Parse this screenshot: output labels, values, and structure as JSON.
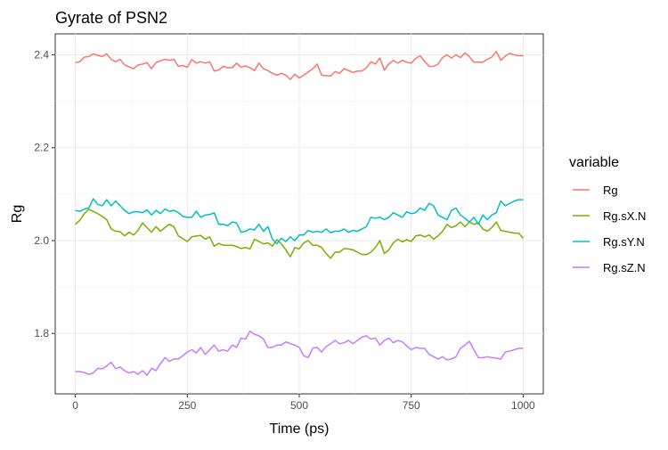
{
  "chart_data": {
    "type": "line",
    "title": "Gyrate of PSN2",
    "xlabel": "Time (ps)",
    "ylabel": "Rg",
    "xlim": [
      -45,
      1045
    ],
    "ylim": [
      1.67,
      2.445
    ],
    "xticks": [
      0,
      250,
      500,
      750,
      1000
    ],
    "xtick_labels": [
      "0",
      "250",
      "500",
      "750",
      "1000"
    ],
    "yticks": [
      1.8,
      2.0,
      2.2,
      2.4
    ],
    "ytick_labels": [
      "1.8",
      "2.0",
      "2.2",
      "2.4"
    ],
    "grid": true,
    "legend": {
      "title": "variable",
      "position": "right"
    },
    "x": [
      0,
      10,
      20,
      30,
      40,
      50,
      60,
      70,
      80,
      90,
      100,
      110,
      120,
      130,
      140,
      150,
      160,
      170,
      180,
      190,
      200,
      210,
      220,
      230,
      240,
      250,
      260,
      270,
      280,
      290,
      300,
      310,
      320,
      330,
      340,
      350,
      360,
      370,
      380,
      390,
      400,
      410,
      420,
      430,
      440,
      450,
      460,
      470,
      480,
      490,
      500,
      510,
      520,
      530,
      540,
      550,
      560,
      570,
      580,
      590,
      600,
      610,
      620,
      630,
      640,
      650,
      660,
      670,
      680,
      690,
      700,
      710,
      720,
      730,
      740,
      750,
      760,
      770,
      780,
      790,
      800,
      810,
      820,
      830,
      840,
      850,
      860,
      870,
      880,
      890,
      900,
      910,
      920,
      930,
      940,
      950,
      960,
      970,
      980,
      990,
      1000
    ],
    "series": [
      {
        "name": "Rg",
        "color": "#f8766d",
        "values": [
          2.383,
          2.385,
          2.395,
          2.396,
          2.402,
          2.399,
          2.396,
          2.402,
          2.39,
          2.385,
          2.39,
          2.378,
          2.374,
          2.37,
          2.378,
          2.38,
          2.383,
          2.37,
          2.383,
          2.387,
          2.39,
          2.388,
          2.39,
          2.375,
          2.377,
          2.373,
          2.39,
          2.382,
          2.385,
          2.382,
          2.385,
          2.365,
          2.367,
          2.375,
          2.372,
          2.372,
          2.382,
          2.373,
          2.376,
          2.372,
          2.366,
          2.382,
          2.37,
          2.366,
          2.36,
          2.356,
          2.36,
          2.356,
          2.347,
          2.358,
          2.35,
          2.356,
          2.363,
          2.37,
          2.38,
          2.356,
          2.355,
          2.354,
          2.364,
          2.36,
          2.37,
          2.366,
          2.362,
          2.365,
          2.365,
          2.372,
          2.385,
          2.38,
          2.393,
          2.367,
          2.38,
          2.388,
          2.382,
          2.388,
          2.384,
          2.382,
          2.392,
          2.398,
          2.386,
          2.375,
          2.375,
          2.38,
          2.394,
          2.4,
          2.393,
          2.4,
          2.394,
          2.404,
          2.396,
          2.384,
          2.384,
          2.384,
          2.39,
          2.395,
          2.407,
          2.388,
          2.397,
          2.403,
          2.4,
          2.398,
          2.398
        ]
      },
      {
        "name": "Rg.sX.N",
        "color": "#7cae00",
        "values": [
          2.035,
          2.044,
          2.058,
          2.067,
          2.063,
          2.058,
          2.052,
          2.045,
          2.025,
          2.02,
          2.019,
          2.01,
          2.018,
          2.012,
          2.022,
          2.038,
          2.028,
          2.018,
          2.03,
          2.02,
          2.028,
          2.035,
          2.03,
          2.01,
          2.004,
          1.998,
          2.008,
          2.01,
          2.011,
          2.003,
          2.008,
          1.988,
          1.994,
          1.99,
          1.99,
          1.99,
          1.987,
          1.983,
          1.985,
          1.982,
          2.003,
          1.998,
          1.993,
          1.995,
          1.988,
          2.002,
          1.993,
          1.98,
          1.965,
          1.985,
          1.982,
          1.995,
          2.0,
          1.99,
          1.99,
          1.985,
          1.972,
          1.962,
          1.975,
          1.975,
          1.983,
          1.982,
          1.98,
          1.975,
          1.97,
          1.97,
          1.975,
          1.985,
          2.0,
          1.972,
          1.98,
          1.995,
          2.003,
          1.997,
          2.002,
          1.998,
          2.01,
          2.012,
          2.008,
          2.012,
          2.003,
          2.01,
          2.02,
          2.035,
          2.028,
          2.032,
          2.04,
          2.03,
          2.04,
          2.035,
          2.038,
          2.025,
          2.02,
          2.028,
          2.04,
          2.022,
          2.02,
          2.018,
          2.016,
          2.016,
          2.005
        ]
      },
      {
        "name": "Rg.sY.N",
        "color": "#00bfc4",
        "values": [
          2.065,
          2.063,
          2.068,
          2.07,
          2.09,
          2.078,
          2.075,
          2.088,
          2.075,
          2.085,
          2.075,
          2.065,
          2.058,
          2.062,
          2.062,
          2.06,
          2.066,
          2.055,
          2.065,
          2.058,
          2.068,
          2.063,
          2.065,
          2.06,
          2.052,
          2.05,
          2.05,
          2.063,
          2.05,
          2.055,
          2.056,
          2.06,
          2.035,
          2.035,
          2.032,
          2.04,
          2.038,
          2.018,
          2.02,
          2.025,
          2.023,
          2.035,
          2.02,
          2.03,
          2.003,
          1.993,
          2.005,
          1.998,
          2.008,
          2.0,
          2.012,
          2.012,
          2.022,
          2.018,
          2.02,
          2.018,
          2.025,
          2.017,
          2.02,
          2.02,
          2.025,
          2.018,
          2.022,
          2.02,
          2.025,
          2.03,
          2.05,
          2.048,
          2.05,
          2.045,
          2.05,
          2.06,
          2.055,
          2.05,
          2.062,
          2.058,
          2.06,
          2.07,
          2.065,
          2.08,
          2.075,
          2.055,
          2.05,
          2.045,
          2.065,
          2.07,
          2.055,
          2.048,
          2.04,
          2.05,
          2.035,
          2.055,
          2.045,
          2.055,
          2.06,
          2.085,
          2.075,
          2.08,
          2.085,
          2.088,
          2.088
        ]
      },
      {
        "name": "Rg.sZ.N",
        "color": "#c77cff",
        "values": [
          1.718,
          1.718,
          1.716,
          1.712,
          1.715,
          1.725,
          1.724,
          1.73,
          1.738,
          1.724,
          1.728,
          1.72,
          1.715,
          1.718,
          1.712,
          1.72,
          1.71,
          1.725,
          1.72,
          1.735,
          1.748,
          1.74,
          1.745,
          1.745,
          1.752,
          1.76,
          1.765,
          1.758,
          1.77,
          1.755,
          1.765,
          1.775,
          1.762,
          1.765,
          1.762,
          1.775,
          1.77,
          1.79,
          1.788,
          1.805,
          1.798,
          1.795,
          1.788,
          1.77,
          1.77,
          1.775,
          1.775,
          1.782,
          1.778,
          1.775,
          1.77,
          1.752,
          1.748,
          1.768,
          1.77,
          1.76,
          1.772,
          1.778,
          1.785,
          1.778,
          1.78,
          1.785,
          1.778,
          1.785,
          1.792,
          1.795,
          1.788,
          1.79,
          1.775,
          1.785,
          1.79,
          1.78,
          1.785,
          1.782,
          1.773,
          1.765,
          1.77,
          1.768,
          1.768,
          1.755,
          1.75,
          1.745,
          1.75,
          1.743,
          1.745,
          1.75,
          1.768,
          1.775,
          1.783,
          1.765,
          1.748,
          1.748,
          1.75,
          1.748,
          1.747,
          1.745,
          1.76,
          1.762,
          1.765,
          1.768,
          1.768
        ]
      }
    ]
  }
}
